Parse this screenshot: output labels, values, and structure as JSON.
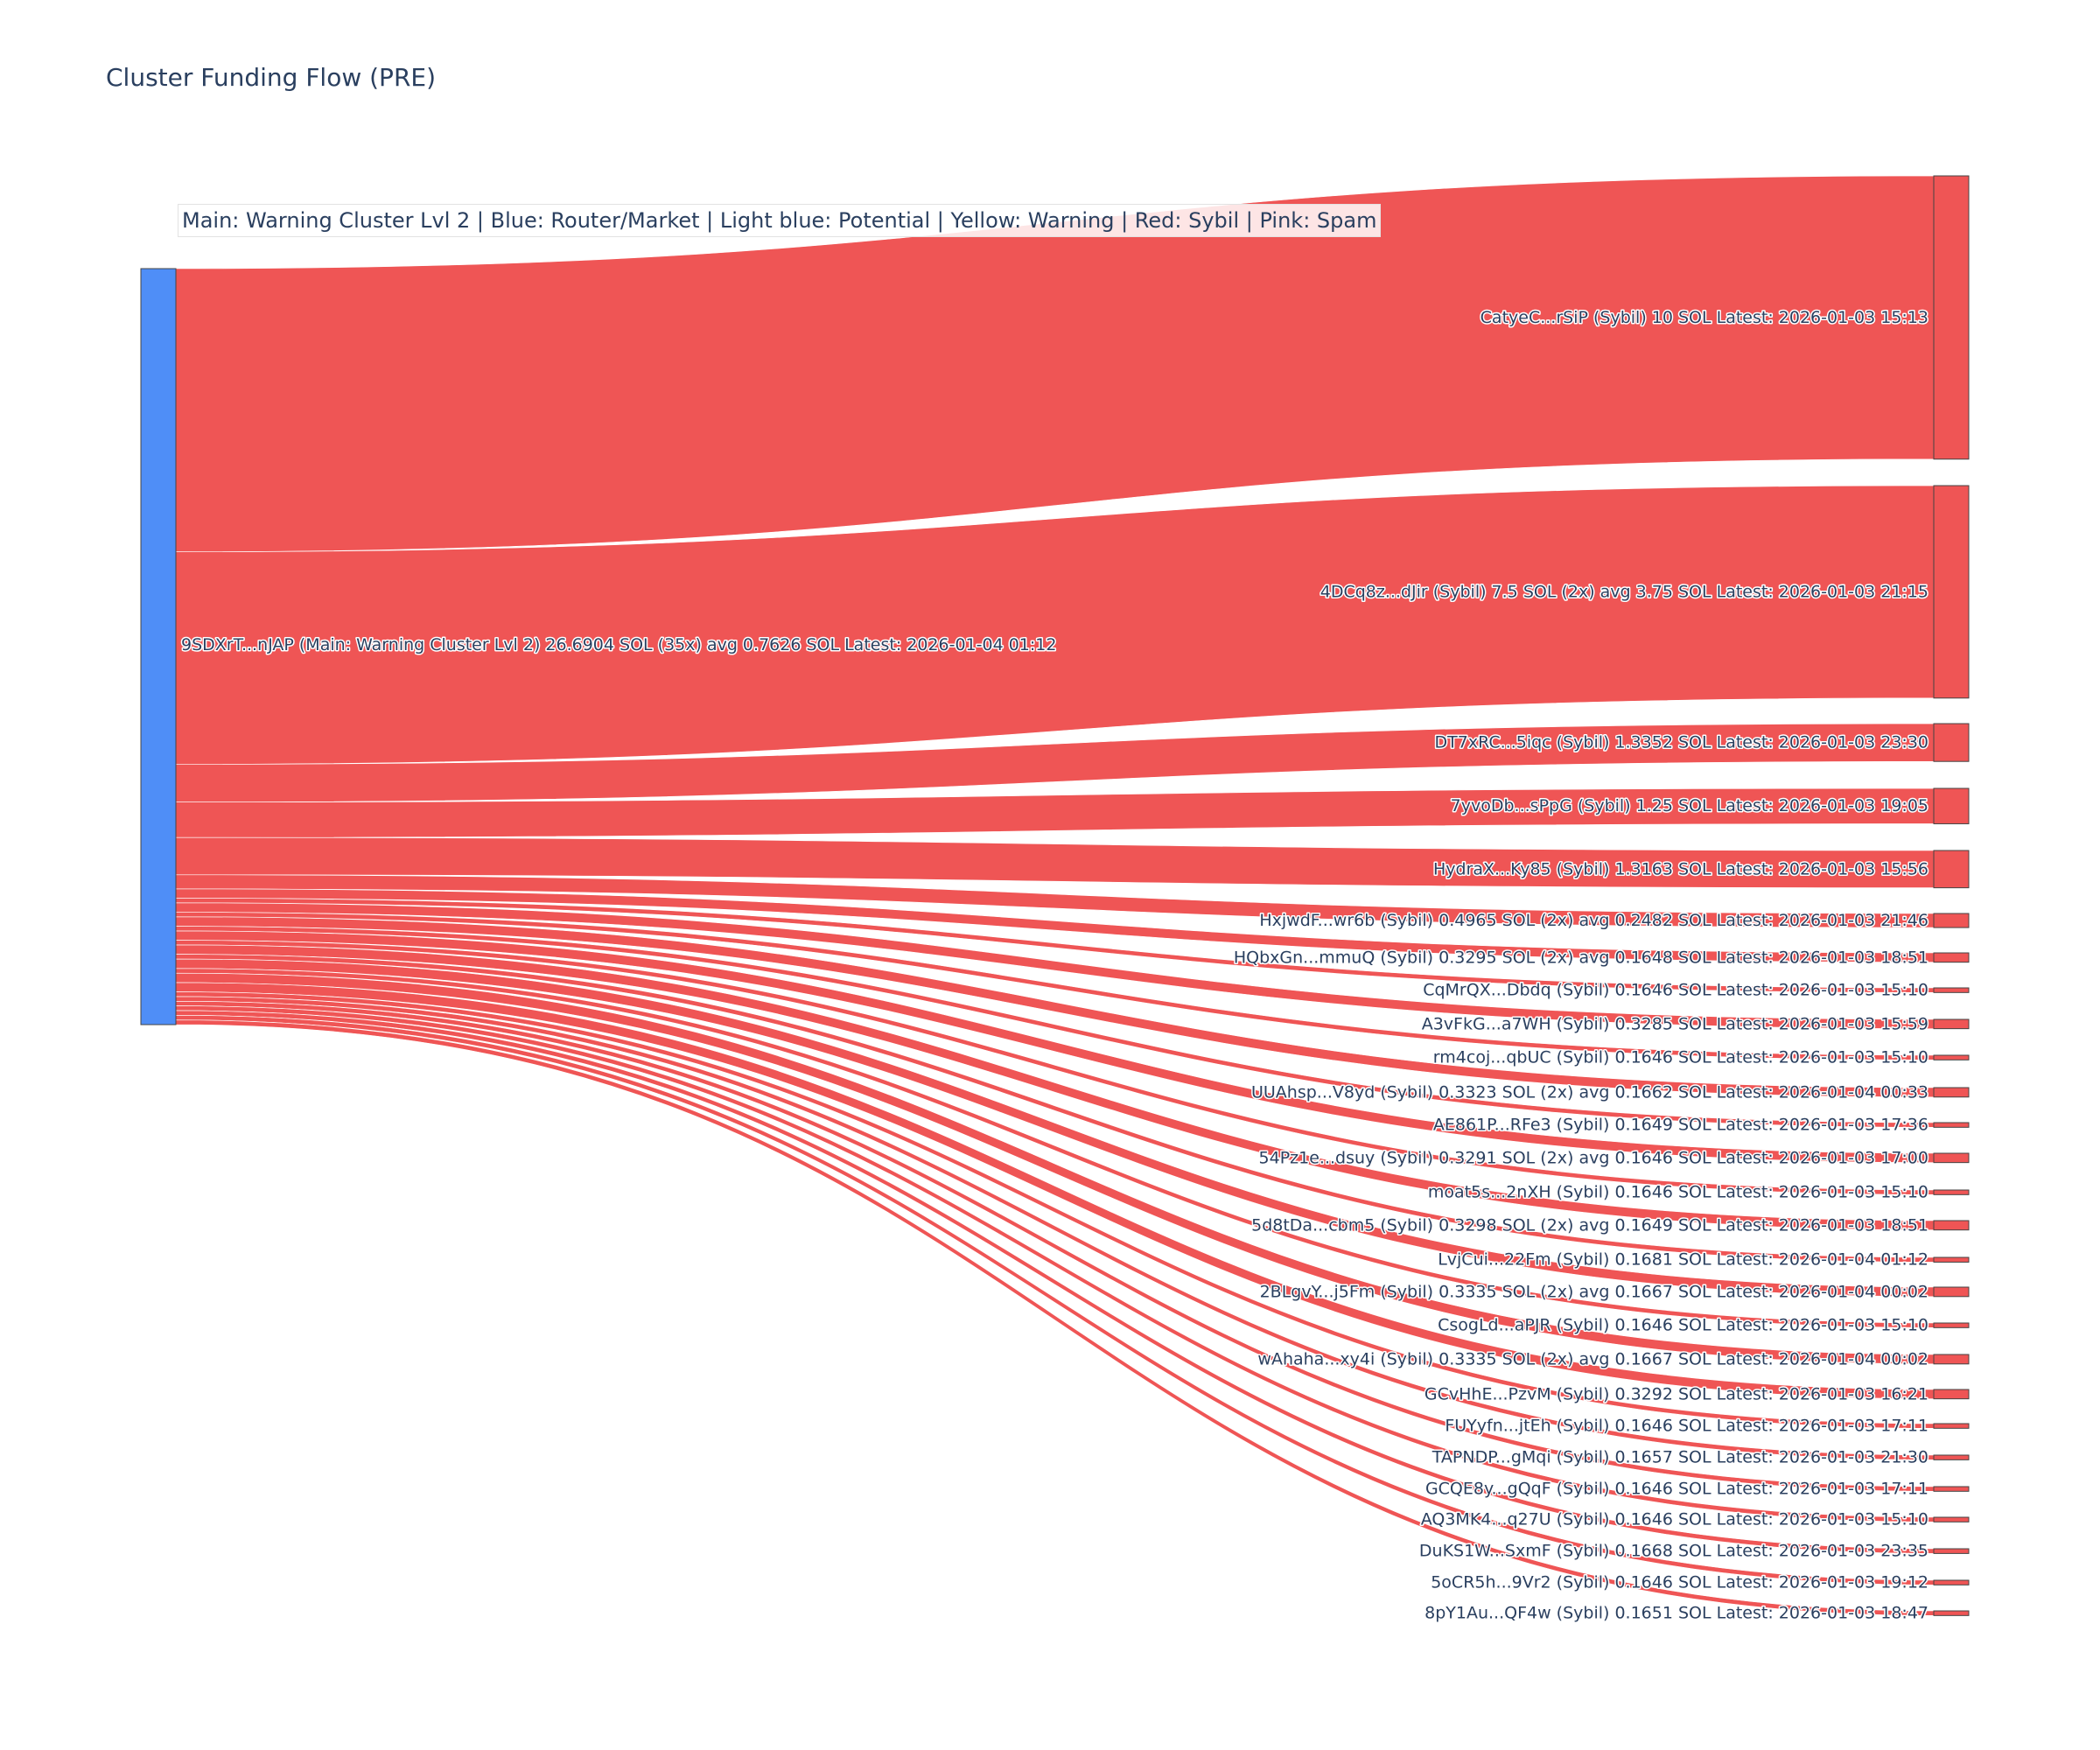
{
  "chart_data": {
    "type": "sankey",
    "title": "Cluster Funding Flow (PRE)",
    "legend_note": "Main: Warning Cluster Lvl 2  |  Blue: Router/Market | Light blue: Potential | Yellow: Warning | Red: Sybil | Pink: Spam",
    "colors": {
      "source": "#4f8ef7",
      "sybil": "#ef5555",
      "link": "#ef5555",
      "node_border": "#444444"
    },
    "source": {
      "label": "9SDXrT...nJAP (Main: Warning Cluster Lvl 2) 26.6904 SOL (35x) avg 0.7626 SOL Latest: 2026-01-04 01:12",
      "total": 26.6904
    },
    "targets": [
      {
        "label": "CatyeC...rSiP (Sybil) 10 SOL Latest: 2026-01-03 15:13",
        "value": 10
      },
      {
        "label": "4DCq8z...dJir (Sybil) 7.5 SOL (2x) avg 3.75 SOL Latest: 2026-01-03 21:15",
        "value": 7.5
      },
      {
        "label": "DT7xRC...5iqc (Sybil) 1.3352 SOL Latest: 2026-01-03 23:30",
        "value": 1.3352
      },
      {
        "label": "7yvoDb...sPpG (Sybil) 1.25 SOL Latest: 2026-01-03 19:05",
        "value": 1.25
      },
      {
        "label": "HydraX...Ky85 (Sybil) 1.3163 SOL Latest: 2026-01-03 15:56",
        "value": 1.3163
      },
      {
        "label": "HxjwdF...wr6b (Sybil) 0.4965 SOL (2x) avg 0.2482 SOL Latest: 2026-01-03 21:46",
        "value": 0.4965
      },
      {
        "label": "HQbxGn...mmuQ (Sybil) 0.3295 SOL (2x) avg 0.1648 SOL Latest: 2026-01-03 18:51",
        "value": 0.3295
      },
      {
        "label": "CqMrQX...Dbdq (Sybil) 0.1646 SOL Latest: 2026-01-03 15:10",
        "value": 0.1646
      },
      {
        "label": "A3vFkG...a7WH (Sybil) 0.3285 SOL Latest: 2026-01-03 15:59",
        "value": 0.3285
      },
      {
        "label": "rm4coj...qbUC (Sybil) 0.1646 SOL Latest: 2026-01-03 15:10",
        "value": 0.1646
      },
      {
        "label": "UUAhsp...V8yd (Sybil) 0.3323 SOL (2x) avg 0.1662 SOL Latest: 2026-01-04 00:33",
        "value": 0.3323
      },
      {
        "label": "AE861P...RFe3 (Sybil) 0.1649 SOL Latest: 2026-01-03 17:36",
        "value": 0.1649
      },
      {
        "label": "54Pz1e...dsuy (Sybil) 0.3291 SOL (2x) avg 0.1646 SOL Latest: 2026-01-03 17:00",
        "value": 0.3291
      },
      {
        "label": "moat5s...2nXH (Sybil) 0.1646 SOL Latest: 2026-01-03 15:10",
        "value": 0.1646
      },
      {
        "label": "5d8tDa...cbm5 (Sybil) 0.3298 SOL (2x) avg 0.1649 SOL Latest: 2026-01-03 18:51",
        "value": 0.3298
      },
      {
        "label": "LvjCui...22Fm (Sybil) 0.1681 SOL Latest: 2026-01-04 01:12",
        "value": 0.1681
      },
      {
        "label": "2BLgvY...j5Fm (Sybil) 0.3335 SOL (2x) avg 0.1667 SOL Latest: 2026-01-04 00:02",
        "value": 0.3335
      },
      {
        "label": "CsogLd...aPJR (Sybil) 0.1646 SOL Latest: 2026-01-03 15:10",
        "value": 0.1646
      },
      {
        "label": "wAhaha...xy4i (Sybil) 0.3335 SOL (2x) avg 0.1667 SOL Latest: 2026-01-04 00:02",
        "value": 0.3335
      },
      {
        "label": "GCvHhE...PzvM (Sybil) 0.3292 SOL Latest: 2026-01-03 16:21",
        "value": 0.3292
      },
      {
        "label": "FUYyfn...jtEh (Sybil) 0.1646 SOL Latest: 2026-01-03 17:11",
        "value": 0.1646
      },
      {
        "label": "TAPNDP...gMqi (Sybil) 0.1657 SOL Latest: 2026-01-03 21:30",
        "value": 0.1657
      },
      {
        "label": "GCQE8y...gQqF (Sybil) 0.1646 SOL Latest: 2026-01-03 17:11",
        "value": 0.1646
      },
      {
        "label": "AQ3MK4...q27U (Sybil) 0.1646 SOL Latest: 2026-01-03 15:10",
        "value": 0.1646
      },
      {
        "label": "DuKS1W...SxmF (Sybil) 0.1668 SOL Latest: 2026-01-03 23:35",
        "value": 0.1668
      },
      {
        "label": "5oCR5h...9Vr2 (Sybil) 0.1646 SOL Latest: 2026-01-03 19:12",
        "value": 0.1646
      },
      {
        "label": "8pY1Au...QF4w (Sybil) 0.1651 SOL Latest: 2026-01-03 18:47",
        "value": 0.1651
      }
    ]
  }
}
